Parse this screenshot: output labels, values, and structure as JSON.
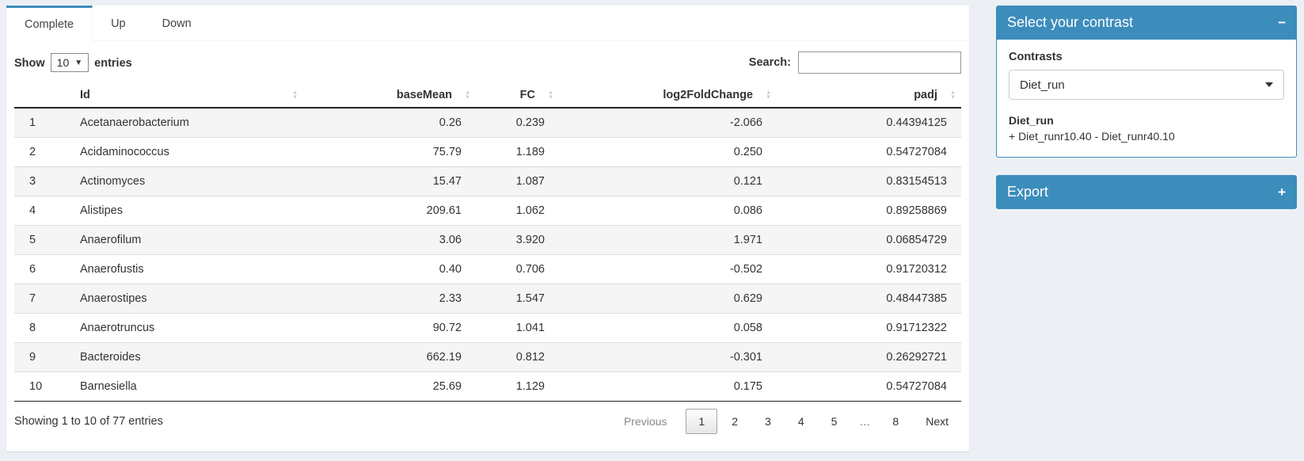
{
  "tabs": [
    {
      "label": "Complete",
      "active": true
    },
    {
      "label": "Up",
      "active": false
    },
    {
      "label": "Down",
      "active": false
    }
  ],
  "table_controls": {
    "show_label": "Show",
    "page_length": "10",
    "entries_label": "entries",
    "search_label": "Search:",
    "search_value": ""
  },
  "table": {
    "columns": [
      "",
      "Id",
      "baseMean",
      "FC",
      "log2FoldChange",
      "padj"
    ],
    "sortable": [
      false,
      true,
      true,
      true,
      true,
      true
    ],
    "rows": [
      [
        "1",
        "Acetanaerobacterium",
        "0.26",
        "0.239",
        "-2.066",
        "0.44394125"
      ],
      [
        "2",
        "Acidaminococcus",
        "75.79",
        "1.189",
        "0.250",
        "0.54727084"
      ],
      [
        "3",
        "Actinomyces",
        "15.47",
        "1.087",
        "0.121",
        "0.83154513"
      ],
      [
        "4",
        "Alistipes",
        "209.61",
        "1.062",
        "0.086",
        "0.89258869"
      ],
      [
        "5",
        "Anaerofilum",
        "3.06",
        "3.920",
        "1.971",
        "0.06854729"
      ],
      [
        "6",
        "Anaerofustis",
        "0.40",
        "0.706",
        "-0.502",
        "0.91720312"
      ],
      [
        "7",
        "Anaerostipes",
        "2.33",
        "1.547",
        "0.629",
        "0.48447385"
      ],
      [
        "8",
        "Anaerotruncus",
        "90.72",
        "1.041",
        "0.058",
        "0.91712322"
      ],
      [
        "9",
        "Bacteroides",
        "662.19",
        "0.812",
        "-0.301",
        "0.26292721"
      ],
      [
        "10",
        "Barnesiella",
        "25.69",
        "1.129",
        "0.175",
        "0.54727084"
      ]
    ],
    "info": "Showing 1 to 10 of 77 entries",
    "pagination": {
      "previous": "Previous",
      "pages": [
        "1",
        "2",
        "3",
        "4",
        "5",
        "…",
        "8"
      ],
      "current": "1",
      "next": "Next"
    }
  },
  "contrast_panel": {
    "title": "Select your contrast",
    "collapse_icon": "−",
    "contrasts_label": "Contrasts",
    "selected_contrast": "Diet_run",
    "contrast_name": "Diet_run",
    "contrast_formula": "+ Diet_runr10.40 - Diet_runr40.10"
  },
  "export_panel": {
    "title": "Export",
    "expand_icon": "+"
  },
  "colors": {
    "accent": "#3c8dbc",
    "page_background": "#ecf0f5",
    "stripe": "#f5f5f5"
  }
}
